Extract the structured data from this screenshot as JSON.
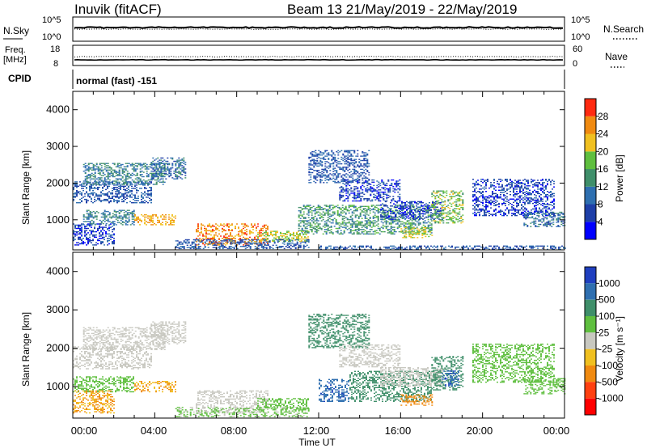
{
  "header": {
    "station": "Inuvik (fitACF)",
    "beam_info": "Beam 13 21/May/2019 - 22/May/2019"
  },
  "nsky_panel": {
    "left_label": "N.Sky",
    "left_ticks": [
      "10^5",
      "10^0"
    ],
    "right_ticks": [
      "10^5",
      "10^0"
    ],
    "right_label": "N.Search"
  },
  "freq_panel": {
    "left_label_1": "Freq.",
    "left_label_2": "[MHz]",
    "left_ticks": [
      "18",
      "8"
    ],
    "right_ticks": [
      "60",
      "0"
    ],
    "right_label": "Nave"
  },
  "cpid": {
    "label": "CPID",
    "text": "normal (fast) -151"
  },
  "x_axis": {
    "label": "Time UT",
    "ticks": [
      "00:00",
      "04:00",
      "08:00",
      "12:00",
      "16:00",
      "20:00",
      "00:00"
    ]
  },
  "power_colorbar": {
    "label": "Power [dB]",
    "ticks": [
      "28",
      "24",
      "20",
      "16",
      "12",
      "8",
      "4"
    ],
    "colors": [
      "#0000ff",
      "#1e3fa8",
      "#2e6fb0",
      "#3f8f6a",
      "#5fbf3f",
      "#f0c020",
      "#f08a10",
      "#ff2a10"
    ]
  },
  "velocity_colorbar": {
    "label": "Velocity [m s⁻¹]",
    "ticks": [
      "1000",
      "500",
      "100",
      "25",
      "-25",
      "-100",
      "-500",
      "-1000"
    ],
    "colors": [
      "#1f3fbf",
      "#2f6fb0",
      "#3f8f6a",
      "#5fbf3f",
      "#c8c8c0",
      "#f0c020",
      "#f08a10",
      "#ff4010",
      "#ff0000"
    ]
  },
  "chart_data": [
    {
      "type": "heatmap",
      "name": "power",
      "xlabel": "Time UT",
      "ylabel": "Slant Range [km]",
      "xlim": [
        0,
        24
      ],
      "ylim": [
        180,
        4500
      ],
      "yticks": [
        1000,
        2000,
        3000,
        4000
      ],
      "xtick_labels": [
        "00:00",
        "04:00",
        "08:00",
        "12:00",
        "16:00",
        "20:00",
        "00:00"
      ],
      "colorbar_label": "Power [dB]",
      "colorbar_ticks": [
        4,
        8,
        12,
        16,
        20,
        24,
        28
      ],
      "regions": [
        {
          "t": [
            0.0,
            3.8
          ],
          "r": [
            1450,
            2050
          ],
          "v": 10
        },
        {
          "t": [
            0.5,
            4.5
          ],
          "r": [
            1950,
            2550
          ],
          "v": 14
        },
        {
          "t": [
            3.8,
            5.5
          ],
          "r": [
            2100,
            2700
          ],
          "v": 12
        },
        {
          "t": [
            0.5,
            3.0
          ],
          "r": [
            850,
            1250
          ],
          "v": 14
        },
        {
          "t": [
            3.0,
            5.0
          ],
          "r": [
            850,
            1150
          ],
          "v": 26
        },
        {
          "t": [
            0.0,
            2.0
          ],
          "r": [
            300,
            900
          ],
          "v": 8
        },
        {
          "t": [
            6.0,
            9.5
          ],
          "r": [
            300,
            900
          ],
          "v": 28
        },
        {
          "t": [
            9.0,
            11.5
          ],
          "r": [
            400,
            700
          ],
          "v": 22
        },
        {
          "t": [
            5.0,
            11.5
          ],
          "r": [
            200,
            450
          ],
          "v": 10
        },
        {
          "t": [
            11.5,
            14.5
          ],
          "r": [
            2000,
            2900
          ],
          "v": 10
        },
        {
          "t": [
            13.0,
            16.0
          ],
          "r": [
            1500,
            2100
          ],
          "v": 8
        },
        {
          "t": [
            11.0,
            17.5
          ],
          "r": [
            600,
            1400
          ],
          "v": 16
        },
        {
          "t": [
            15.0,
            18.0
          ],
          "r": [
            1000,
            1500
          ],
          "v": 8
        },
        {
          "t": [
            16.0,
            17.5
          ],
          "r": [
            500,
            800
          ],
          "v": 22
        },
        {
          "t": [
            17.5,
            19.0
          ],
          "r": [
            900,
            1800
          ],
          "v": 20
        },
        {
          "t": [
            19.5,
            23.5
          ],
          "r": [
            1100,
            2100
          ],
          "v": 8
        },
        {
          "t": [
            22.0,
            24.0
          ],
          "r": [
            800,
            1200
          ],
          "v": 12
        },
        {
          "t": [
            12.0,
            24.0
          ],
          "r": [
            180,
            300
          ],
          "v": 10
        }
      ]
    },
    {
      "type": "heatmap",
      "name": "velocity",
      "xlabel": "Time UT",
      "ylabel": "Slant Range [km]",
      "xlim": [
        0,
        24
      ],
      "ylim": [
        180,
        4500
      ],
      "yticks": [
        1000,
        2000,
        3000,
        4000
      ],
      "xtick_labels": [
        "00:00",
        "04:00",
        "08:00",
        "12:00",
        "16:00",
        "20:00",
        "00:00"
      ],
      "colorbar_label": "Velocity [m s⁻¹]",
      "colorbar_ticks": [
        -1000,
        -500,
        -100,
        -25,
        25,
        100,
        500,
        1000
      ],
      "regions": [
        {
          "t": [
            0.0,
            3.8
          ],
          "r": [
            1450,
            2050
          ],
          "v": 0
        },
        {
          "t": [
            0.5,
            4.5
          ],
          "r": [
            1950,
            2550
          ],
          "v": 0
        },
        {
          "t": [
            3.8,
            5.5
          ],
          "r": [
            2100,
            2700
          ],
          "v": 0
        },
        {
          "t": [
            0.0,
            3.0
          ],
          "r": [
            850,
            1250
          ],
          "v": 80
        },
        {
          "t": [
            3.0,
            5.0
          ],
          "r": [
            850,
            1150
          ],
          "v": -100
        },
        {
          "t": [
            0.0,
            2.0
          ],
          "r": [
            300,
            900
          ],
          "v": -100
        },
        {
          "t": [
            6.0,
            9.5
          ],
          "r": [
            300,
            900
          ],
          "v": 0
        },
        {
          "t": [
            9.0,
            11.5
          ],
          "r": [
            400,
            700
          ],
          "v": 80
        },
        {
          "t": [
            5.0,
            11.5
          ],
          "r": [
            200,
            450
          ],
          "v": 30
        },
        {
          "t": [
            11.5,
            14.5
          ],
          "r": [
            2000,
            2900
          ],
          "v": 300
        },
        {
          "t": [
            13.0,
            16.0
          ],
          "r": [
            1500,
            2100
          ],
          "v": 0
        },
        {
          "t": [
            12.0,
            13.5
          ],
          "r": [
            600,
            1200
          ],
          "v": 900
        },
        {
          "t": [
            13.5,
            17.5
          ],
          "r": [
            600,
            1400
          ],
          "v": 200
        },
        {
          "t": [
            15.0,
            18.0
          ],
          "r": [
            1000,
            1500
          ],
          "v": 0
        },
        {
          "t": [
            16.0,
            17.5
          ],
          "r": [
            500,
            800
          ],
          "v": -400
        },
        {
          "t": [
            17.5,
            19.0
          ],
          "r": [
            900,
            1800
          ],
          "v": 150
        },
        {
          "t": [
            18.0,
            18.8
          ],
          "r": [
            1000,
            1400
          ],
          "v": 900
        },
        {
          "t": [
            19.5,
            23.5
          ],
          "r": [
            1100,
            2100
          ],
          "v": 60
        },
        {
          "t": [
            22.0,
            24.0
          ],
          "r": [
            800,
            1200
          ],
          "v": 60
        }
      ]
    }
  ]
}
